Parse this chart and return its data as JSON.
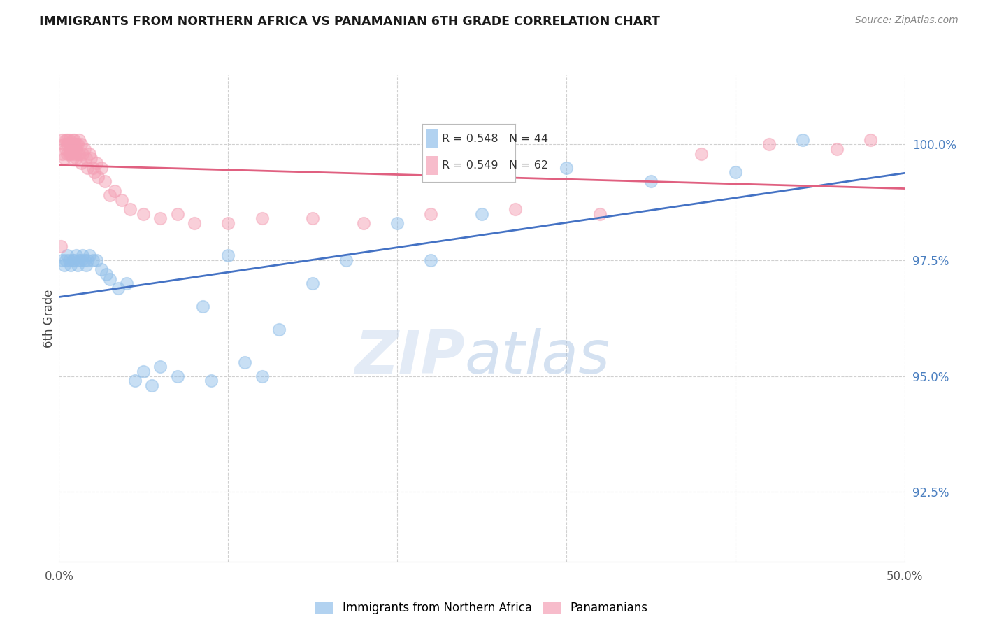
{
  "title": "IMMIGRANTS FROM NORTHERN AFRICA VS PANAMANIAN 6TH GRADE CORRELATION CHART",
  "source": "Source: ZipAtlas.com",
  "ylabel": "6th Grade",
  "ytick_labels": [
    "92.5%",
    "95.0%",
    "97.5%",
    "100.0%"
  ],
  "ytick_values": [
    92.5,
    95.0,
    97.5,
    100.0
  ],
  "xlim": [
    0.0,
    50.0
  ],
  "ylim": [
    91.0,
    101.5
  ],
  "legend_blue_r": "R = 0.548",
  "legend_blue_n": "N = 44",
  "legend_pink_r": "R = 0.549",
  "legend_pink_n": "N = 62",
  "legend_blue_label": "Immigrants from Northern Africa",
  "legend_pink_label": "Panamanians",
  "blue_color": "#92C0EA",
  "pink_color": "#F4A0B5",
  "blue_line_color": "#4472C4",
  "pink_line_color": "#E06080",
  "blue_scatter_x": [
    0.2,
    0.3,
    0.4,
    0.5,
    0.6,
    0.7,
    0.8,
    0.9,
    1.0,
    1.1,
    1.2,
    1.3,
    1.4,
    1.5,
    1.6,
    1.7,
    1.8,
    2.0,
    2.2,
    2.5,
    2.8,
    3.0,
    3.5,
    4.0,
    4.5,
    5.0,
    5.5,
    6.0,
    7.0,
    8.5,
    9.0,
    10.0,
    11.0,
    12.0,
    13.0,
    15.0,
    17.0,
    20.0,
    22.0,
    25.0,
    30.0,
    35.0,
    40.0,
    44.0
  ],
  "blue_scatter_y": [
    97.5,
    97.4,
    97.5,
    97.6,
    97.5,
    97.4,
    97.5,
    97.5,
    97.6,
    97.4,
    97.5,
    97.5,
    97.6,
    97.5,
    97.4,
    97.5,
    97.6,
    97.5,
    97.5,
    97.3,
    97.2,
    97.1,
    96.9,
    97.0,
    94.9,
    95.1,
    94.8,
    95.2,
    95.0,
    96.5,
    94.9,
    97.6,
    95.3,
    95.0,
    96.0,
    97.0,
    97.5,
    98.3,
    97.5,
    98.5,
    99.5,
    99.2,
    99.4,
    100.1
  ],
  "pink_scatter_x": [
    0.1,
    0.2,
    0.2,
    0.3,
    0.3,
    0.4,
    0.4,
    0.5,
    0.5,
    0.5,
    0.6,
    0.6,
    0.6,
    0.7,
    0.7,
    0.7,
    0.8,
    0.8,
    0.8,
    0.9,
    0.9,
    0.9,
    1.0,
    1.0,
    1.0,
    1.1,
    1.1,
    1.2,
    1.2,
    1.3,
    1.3,
    1.4,
    1.5,
    1.6,
    1.7,
    1.8,
    1.9,
    2.0,
    2.1,
    2.2,
    2.3,
    2.5,
    2.7,
    3.0,
    3.3,
    3.7,
    4.2,
    5.0,
    6.0,
    7.0,
    8.0,
    10.0,
    12.0,
    15.0,
    18.0,
    22.0,
    27.0,
    32.0,
    38.0,
    42.0,
    46.0,
    48.0
  ],
  "pink_scatter_y": [
    97.8,
    100.1,
    99.8,
    100.0,
    99.7,
    100.1,
    99.9,
    100.0,
    99.8,
    100.1,
    100.0,
    99.8,
    100.1,
    99.9,
    100.0,
    99.8,
    100.1,
    100.0,
    99.7,
    100.0,
    99.8,
    100.1,
    100.0,
    99.9,
    99.7,
    100.0,
    99.8,
    100.1,
    99.8,
    100.0,
    99.6,
    99.8,
    99.9,
    99.7,
    99.5,
    99.8,
    99.7,
    99.5,
    99.4,
    99.6,
    99.3,
    99.5,
    99.2,
    98.9,
    99.0,
    98.8,
    98.6,
    98.5,
    98.4,
    98.5,
    98.3,
    98.3,
    98.4,
    98.4,
    98.3,
    98.5,
    98.6,
    98.5,
    99.8,
    100.0,
    99.9,
    100.1
  ]
}
